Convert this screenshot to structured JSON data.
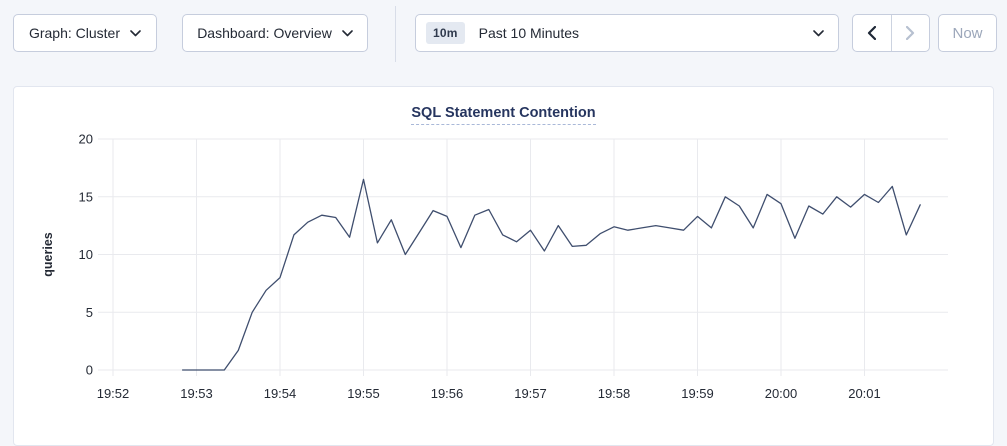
{
  "toolbar": {
    "graph_dropdown": {
      "label": "Graph: Cluster"
    },
    "dashboard_dropdown": {
      "label": "Dashboard: Overview"
    },
    "time_selector": {
      "badge": "10m",
      "label": "Past 10 Minutes"
    },
    "now_label": "Now"
  },
  "colors": {
    "page_bg": "#f4f6fa",
    "card_bg": "#ffffff",
    "control_border": "#c6cddd",
    "text_dark": "#242a35",
    "disabled_text": "#9ca7ba",
    "disabled_icon": "#b7c0d0",
    "title_navy": "#26355f",
    "grid": "#e9eaee",
    "line": "#3f4e6e"
  },
  "chart_data": {
    "type": "line",
    "title": "SQL Statement Contention",
    "xlabel": "",
    "ylabel": "queries",
    "ylim": [
      0,
      20
    ],
    "yticks": [
      0,
      5,
      10,
      15,
      20
    ],
    "x_domain_seconds": [
      0,
      600
    ],
    "x_tick_seconds": [
      0,
      60,
      120,
      180,
      240,
      300,
      360,
      420,
      480,
      540
    ],
    "x_tick_labels": [
      "19:52",
      "19:53",
      "19:54",
      "19:55",
      "19:56",
      "19:57",
      "19:58",
      "19:59",
      "20:00",
      "20:01"
    ],
    "grid": true,
    "legend_position": "none",
    "series": [
      {
        "name": "queries",
        "x_seconds": [
          50,
          60,
          70,
          80,
          90,
          100,
          110,
          120,
          130,
          140,
          150,
          160,
          170,
          180,
          190,
          200,
          210,
          220,
          230,
          240,
          250,
          260,
          270,
          280,
          290,
          300,
          310,
          320,
          330,
          340,
          350,
          360,
          370,
          380,
          390,
          400,
          410,
          420,
          430,
          440,
          450,
          460,
          470,
          480,
          490,
          500,
          510,
          520,
          530,
          540,
          550,
          560,
          570,
          580
        ],
        "values": [
          0,
          0,
          0,
          0,
          1.7,
          5,
          6.9,
          8,
          11.7,
          12.8,
          13.4,
          13.2,
          11.5,
          16.5,
          11,
          13,
          10,
          11.9,
          13.8,
          13.3,
          10.6,
          13.4,
          13.9,
          11.7,
          11.1,
          12.1,
          10.3,
          12.5,
          10.7,
          10.8,
          11.8,
          12.4,
          12.1,
          12.3,
          12.5,
          12.3,
          12.1,
          13.3,
          12.3,
          15,
          14.2,
          12.3,
          15.2,
          14.4,
          11.4,
          14.2,
          13.5,
          15,
          14.1,
          15.2,
          14.5,
          15.9,
          11.7,
          14.3
        ]
      }
    ]
  }
}
